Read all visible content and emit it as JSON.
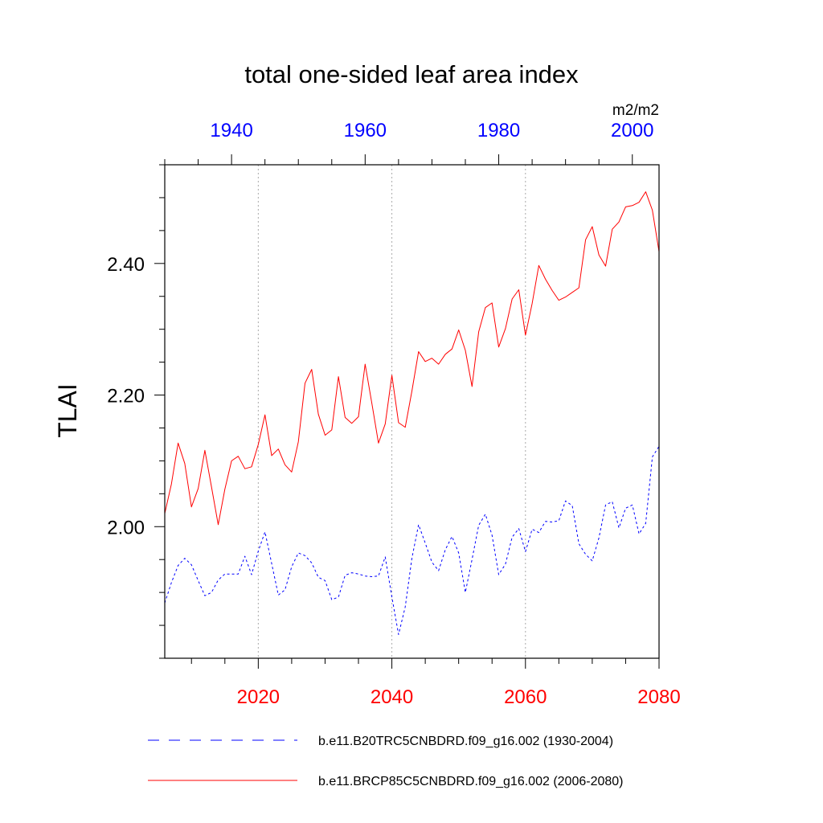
{
  "chart_data": {
    "type": "line",
    "title": "total one-sided leaf area index",
    "ylabel": "TLAI",
    "units": "m2/m2",
    "ylim": [
      1.8,
      2.55
    ],
    "y_ticks": [
      2.0,
      2.2,
      2.4
    ],
    "y_tick_labels": [
      "2.00",
      "2.20",
      "2.40"
    ],
    "y_minor_step": 0.05,
    "grid": "vertical dotted lines at bottom-axis major ticks",
    "bottom_axis": {
      "xlim": [
        2006,
        2080
      ],
      "ticks": [
        2020,
        2040,
        2060,
        2080
      ],
      "tick_labels": [
        "2020",
        "2040",
        "2060",
        "2080"
      ],
      "color": "#ff0000"
    },
    "top_axis": {
      "xlim": [
        1930,
        2004
      ],
      "ticks": [
        1940,
        1960,
        1980,
        2000
      ],
      "tick_labels": [
        "1940",
        "1960",
        "1980",
        "2000"
      ],
      "color": "#0000ff"
    },
    "series": [
      {
        "name": "b.e11.BRCP85C5CNBDRD.f09_g16.002 (2006-2080)",
        "axis": "bottom",
        "color": "#ff0000",
        "style": "solid",
        "x_start": 2006,
        "values": [
          2.02,
          2.065,
          2.127,
          2.096,
          2.03,
          2.058,
          2.116,
          2.06,
          2.003,
          2.057,
          2.1,
          2.107,
          2.088,
          2.091,
          2.125,
          2.17,
          2.108,
          2.118,
          2.094,
          2.083,
          2.129,
          2.218,
          2.239,
          2.171,
          2.139,
          2.147,
          2.228,
          2.166,
          2.157,
          2.167,
          2.247,
          2.188,
          2.127,
          2.156,
          2.23,
          2.158,
          2.151,
          2.206,
          2.266,
          2.251,
          2.256,
          2.247,
          2.262,
          2.27,
          2.299,
          2.268,
          2.213,
          2.296,
          2.333,
          2.34,
          2.273,
          2.301,
          2.346,
          2.36,
          2.291,
          2.339,
          2.397,
          2.376,
          2.359,
          2.344,
          2.349,
          2.356,
          2.363,
          2.436,
          2.456,
          2.413,
          2.396,
          2.452,
          2.463,
          2.486,
          2.488,
          2.493,
          2.509,
          2.481,
          2.418
        ]
      },
      {
        "name": "b.e11.B20TRC5CNBDRD.f09_g16.002 (1930-2004)",
        "axis": "top",
        "color": "#0000ff",
        "style": "dashed",
        "x_start": 1930,
        "values": [
          1.884,
          1.915,
          1.941,
          1.952,
          1.942,
          1.918,
          1.895,
          1.9,
          1.919,
          1.928,
          1.928,
          1.928,
          1.955,
          1.927,
          1.963,
          1.992,
          1.944,
          1.896,
          1.904,
          1.939,
          1.96,
          1.956,
          1.945,
          1.923,
          1.918,
          1.889,
          1.893,
          1.926,
          1.93,
          1.928,
          1.925,
          1.924,
          1.925,
          1.954,
          1.893,
          1.836,
          1.878,
          1.952,
          2.003,
          1.975,
          1.946,
          1.933,
          1.965,
          1.985,
          1.96,
          1.9,
          1.95,
          2.002,
          2.019,
          1.987,
          1.927,
          1.943,
          1.984,
          1.997,
          1.962,
          1.996,
          1.991,
          2.008,
          2.007,
          2.009,
          2.039,
          2.032,
          1.974,
          1.958,
          1.948,
          1.983,
          2.033,
          2.038,
          1.998,
          2.028,
          2.033,
          1.989,
          2.005,
          2.106,
          2.122
        ]
      }
    ],
    "legend": [
      {
        "label": "b.e11.B20TRC5CNBDRD.f09_g16.002 (1930-2004)",
        "color": "#0000ff",
        "style": "dashed"
      },
      {
        "label": "b.e11.BRCP85C5CNBDRD.f09_g16.002 (2006-2080)",
        "color": "#ff0000",
        "style": "solid"
      }
    ],
    "legend_position": "bottom"
  }
}
